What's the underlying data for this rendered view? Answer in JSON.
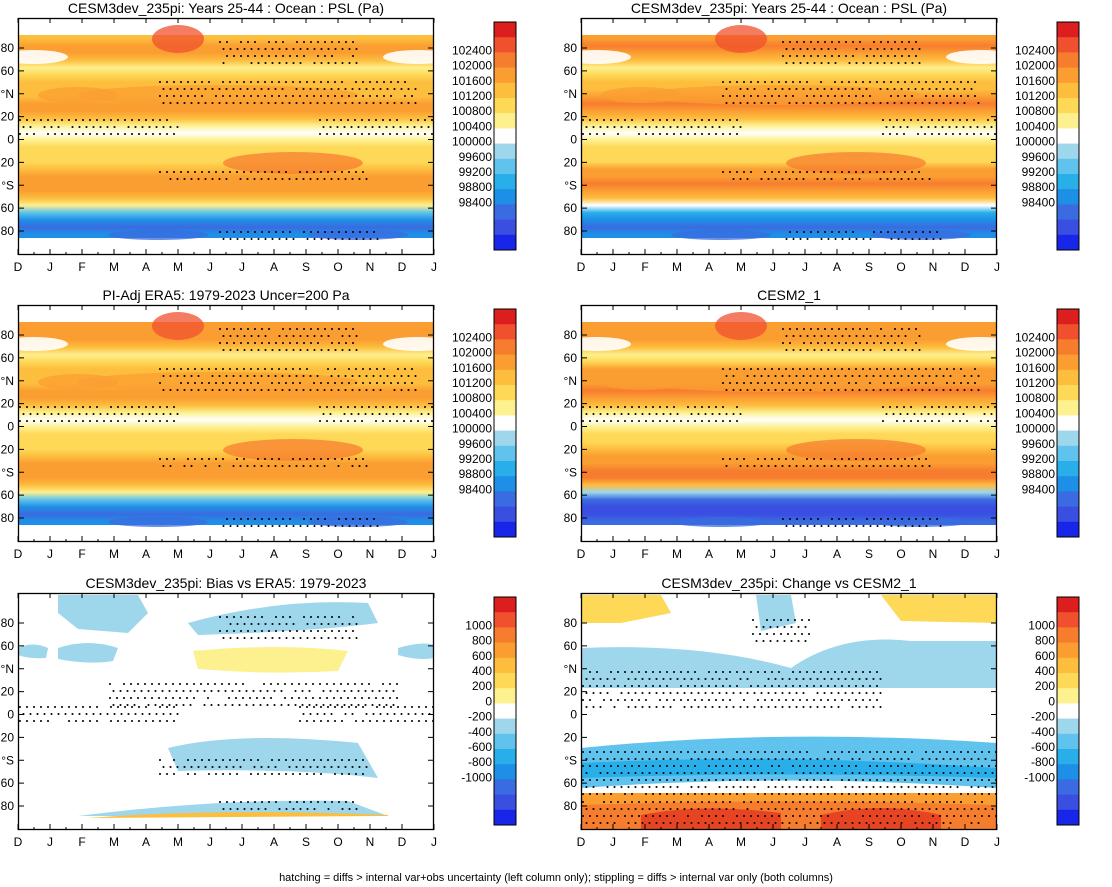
{
  "footnote": "hatching = diffs > internal var+obs uncertainty (left column only); stippling = diffs > internal var only (both columns)",
  "chart_data": [
    {
      "type": "heatmap",
      "title": "CESM3dev_235pi: Years 25-44 : Ocean : PSL (Pa)",
      "kind": "abs",
      "x_ticks": [
        "D",
        "J",
        "F",
        "M",
        "A",
        "M",
        "J",
        "J",
        "A",
        "S",
        "O",
        "N",
        "D",
        "J"
      ],
      "y_ticks": [
        "80",
        "60",
        "°N",
        "20",
        "0",
        "20",
        "°S",
        "60",
        "80"
      ],
      "levels": [
        "102400",
        "102000",
        "101600",
        "101200",
        "100800",
        "100400",
        "100000",
        "99600",
        "99200",
        "98800",
        "98400"
      ],
      "colors": [
        "#dc1e1e",
        "#f0502d",
        "#f77d2e",
        "#fb9e32",
        "#fdbe3e",
        "#fed857",
        "#fdf08e",
        "#ffffff",
        "#9ed6ec",
        "#5fc3ed",
        "#28aee9",
        "#1e8fe6",
        "#3a6be0",
        "#3a4ee2",
        "#1726e9"
      ],
      "band_values": [
        101580,
        101950,
        101850,
        101300,
        100400,
        100900,
        101500,
        101300,
        101550,
        101920,
        101750,
        101200,
        100550,
        100150,
        100750,
        101000,
        100900,
        101100,
        101450,
        101650,
        101900,
        101850,
        101450,
        100700,
        99500,
        98650,
        98250,
        98550
      ]
    },
    {
      "type": "heatmap",
      "title": "CESM3dev_235pi: Years 25-44 : Ocean : PSL (Pa)",
      "kind": "abs",
      "x_ticks": [
        "D",
        "J",
        "F",
        "M",
        "A",
        "M",
        "J",
        "J",
        "A",
        "S",
        "O",
        "N",
        "D",
        "J"
      ],
      "y_ticks": [
        "80",
        "60",
        "°N",
        "20",
        "0",
        "20",
        "°S",
        "60",
        "80"
      ],
      "levels": [
        "102400",
        "102000",
        "101600",
        "101200",
        "100800",
        "100400",
        "100000",
        "99600",
        "99200",
        "98800",
        "98400"
      ],
      "colors": [
        "#dc1e1e",
        "#f0502d",
        "#f77d2e",
        "#fb9e32",
        "#fdbe3e",
        "#fed857",
        "#fdf08e",
        "#ffffff",
        "#9ed6ec",
        "#5fc3ed",
        "#28aee9",
        "#1e8fe6",
        "#3a6be0",
        "#3a4ee2",
        "#1726e9"
      ],
      "band_values": [
        101650,
        102000,
        101850,
        101300,
        100400,
        100900,
        101550,
        101400,
        101650,
        102000,
        101800,
        101350,
        100700,
        100300,
        100750,
        100950,
        100850,
        101150,
        101600,
        101850,
        102050,
        101900,
        101200,
        100300,
        98900,
        98400,
        98250,
        98600
      ]
    },
    {
      "type": "heatmap",
      "title": "PI-Adj ERA5: 1979-2023 Uncer=200 Pa",
      "kind": "abs",
      "x_ticks": [
        "D",
        "J",
        "F",
        "M",
        "A",
        "M",
        "J",
        "J",
        "A",
        "S",
        "O",
        "N",
        "D",
        "J"
      ],
      "y_ticks": [
        "80",
        "60",
        "°N",
        "20",
        "0",
        "20",
        "°S",
        "60",
        "80"
      ],
      "levels": [
        "102400",
        "102000",
        "101600",
        "101200",
        "100800",
        "100400",
        "100000",
        "99600",
        "99200",
        "98800",
        "98400"
      ],
      "colors": [
        "#dc1e1e",
        "#f0502d",
        "#f77d2e",
        "#fb9e32",
        "#fdbe3e",
        "#fed857",
        "#fdf08e",
        "#ffffff",
        "#9ed6ec",
        "#5fc3ed",
        "#28aee9",
        "#1e8fe6",
        "#3a6be0",
        "#3a4ee2",
        "#1726e9"
      ],
      "band_values": [
        101600,
        101950,
        101850,
        101300,
        100450,
        100900,
        101500,
        101300,
        101550,
        101900,
        101750,
        101200,
        100550,
        100150,
        100750,
        101000,
        100900,
        101100,
        101450,
        101650,
        101900,
        101850,
        101400,
        100650,
        99450,
        98650,
        98300,
        98600
      ]
    },
    {
      "type": "heatmap",
      "title": "CESM2_1",
      "kind": "abs",
      "x_ticks": [
        "D",
        "J",
        "F",
        "M",
        "A",
        "M",
        "J",
        "J",
        "A",
        "S",
        "O",
        "N",
        "D",
        "J"
      ],
      "y_ticks": [
        "80",
        "60",
        "°N",
        "20",
        "0",
        "20",
        "°S",
        "60",
        "80"
      ],
      "levels": [
        "102400",
        "102000",
        "101600",
        "101200",
        "100800",
        "100400",
        "100000",
        "99600",
        "99200",
        "98800",
        "98400"
      ],
      "colors": [
        "#dc1e1e",
        "#f0502d",
        "#f77d2e",
        "#fb9e32",
        "#fdbe3e",
        "#fed857",
        "#fdf08e",
        "#ffffff",
        "#9ed6ec",
        "#5fc3ed",
        "#28aee9",
        "#1e8fe6",
        "#3a6be0",
        "#3a4ee2",
        "#1726e9"
      ],
      "band_values": [
        101700,
        101950,
        101800,
        101350,
        100400,
        101000,
        101700,
        101600,
        101800,
        102050,
        101900,
        101400,
        100650,
        100250,
        100750,
        100950,
        100900,
        101200,
        101700,
        101950,
        102150,
        102000,
        101350,
        99700,
        98300,
        98100,
        98000,
        98300
      ]
    },
    {
      "type": "heatmap",
      "title": "CESM3dev_235pi: Bias vs ERA5: 1979-2023",
      "kind": "diff",
      "x_ticks": [
        "D",
        "J",
        "F",
        "M",
        "A",
        "M",
        "J",
        "J",
        "A",
        "S",
        "O",
        "N",
        "D",
        "J"
      ],
      "y_ticks": [
        "80",
        "60",
        "°N",
        "20",
        "0",
        "20",
        "°S",
        "60",
        "80"
      ],
      "levels": [
        "1000",
        "800",
        "600",
        "400",
        "200",
        "0",
        "-200",
        "-400",
        "-600",
        "-800",
        "-1000"
      ],
      "colors": [
        "#dc1e1e",
        "#f0502d",
        "#f77d2e",
        "#fb9e32",
        "#fdbe3e",
        "#fed857",
        "#fdf08e",
        "#ffffff",
        "#9ed6ec",
        "#5fc3ed",
        "#28aee9",
        "#1e8fe6",
        "#3a6be0",
        "#3a4ee2",
        "#1726e9"
      ]
    },
    {
      "type": "heatmap",
      "title": "CESM3dev_235pi: Change vs CESM2_1",
      "kind": "diff",
      "x_ticks": [
        "D",
        "J",
        "F",
        "M",
        "A",
        "M",
        "J",
        "J",
        "A",
        "S",
        "O",
        "N",
        "D",
        "J"
      ],
      "y_ticks": [
        "80",
        "60",
        "°N",
        "20",
        "0",
        "20",
        "°S",
        "60",
        "80"
      ],
      "levels": [
        "1000",
        "800",
        "600",
        "400",
        "200",
        "0",
        "-200",
        "-400",
        "-600",
        "-800",
        "-1000"
      ],
      "colors": [
        "#dc1e1e",
        "#f0502d",
        "#f77d2e",
        "#fb9e32",
        "#fdbe3e",
        "#fed857",
        "#fdf08e",
        "#ffffff",
        "#9ed6ec",
        "#5fc3ed",
        "#28aee9",
        "#1e8fe6",
        "#3a6be0",
        "#3a4ee2",
        "#1726e9"
      ]
    }
  ]
}
